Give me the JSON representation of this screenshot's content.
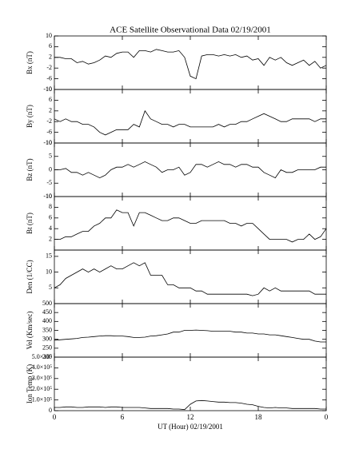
{
  "chart_data": [
    {
      "type": "line",
      "title": "ACE Satellite Observational Data   02/19/2001",
      "ylabel": "Bx (nT)",
      "x": [
        0,
        0.5,
        1,
        1.5,
        2,
        2.5,
        3,
        3.5,
        4,
        4.5,
        5,
        5.5,
        6,
        6.5,
        7,
        7.5,
        8,
        8.5,
        9,
        9.5,
        10,
        10.5,
        11,
        11.5,
        12,
        12.5,
        13,
        13.5,
        14,
        14.5,
        15,
        15.5,
        16,
        16.5,
        17,
        17.5,
        18,
        18.5,
        19,
        19.5,
        20,
        20.5,
        21,
        21.5,
        22,
        22.5,
        23,
        23.5,
        24
      ],
      "xlim": [
        0,
        24
      ],
      "xticks": [
        0,
        6,
        12,
        18,
        {
          "value": 24,
          "label": "0"
        }
      ],
      "ylim": [
        -10,
        10
      ],
      "yticks": [
        -10,
        -6,
        -2,
        2,
        6,
        10
      ],
      "series": [
        {
          "color": "#000000",
          "values": [
            2,
            2,
            1.5,
            1.5,
            0,
            0.5,
            -0.5,
            0,
            1,
            2.5,
            2,
            3.5,
            4,
            4,
            2,
            4.5,
            4.5,
            4,
            5,
            4.5,
            4,
            4,
            4.5,
            2,
            -5,
            -6,
            2.5,
            3,
            3,
            2.5,
            3,
            2.5,
            3,
            2,
            2.5,
            1,
            1.5,
            -1,
            2,
            1,
            2,
            0,
            -1,
            0,
            1,
            -1,
            0.5,
            -2,
            -1
          ]
        }
      ]
    },
    {
      "type": "line",
      "ylabel": "By (nT)",
      "x": [
        0,
        0.5,
        1,
        1.5,
        2,
        2.5,
        3,
        3.5,
        4,
        4.5,
        5,
        5.5,
        6,
        6.5,
        7,
        7.5,
        8,
        8.5,
        9,
        9.5,
        10,
        10.5,
        11,
        11.5,
        12,
        12.5,
        13,
        13.5,
        14,
        14.5,
        15,
        15.5,
        16,
        16.5,
        17,
        17.5,
        18,
        18.5,
        19,
        19.5,
        20,
        20.5,
        21,
        21.5,
        22,
        22.5,
        23,
        23.5,
        24
      ],
      "xlim": [
        0,
        24
      ],
      "xticks": [
        0,
        6,
        12,
        18,
        {
          "value": 24,
          "label": "0"
        }
      ],
      "ylim": [
        -10,
        10
      ],
      "yticks": [
        -10,
        -6,
        -2,
        2,
        6,
        10
      ],
      "series": [
        {
          "color": "#000000",
          "values": [
            -1,
            -2,
            -1,
            -2,
            -2,
            -3,
            -3,
            -4,
            -6,
            -7,
            -6,
            -5,
            -5,
            -5,
            -3,
            -4,
            2,
            -1,
            -2,
            -3,
            -3,
            -4,
            -3,
            -3,
            -4,
            -4,
            -4,
            -4,
            -4,
            -3,
            -4,
            -3,
            -3,
            -2,
            -2,
            -1,
            0,
            1,
            0,
            -1,
            -2,
            -2,
            -1,
            -1,
            -1,
            -1,
            -2,
            -1,
            -1
          ]
        }
      ]
    },
    {
      "type": "line",
      "ylabel": "Bz (nT)",
      "x": [
        0,
        0.5,
        1,
        1.5,
        2,
        2.5,
        3,
        3.5,
        4,
        4.5,
        5,
        5.5,
        6,
        6.5,
        7,
        7.5,
        8,
        8.5,
        9,
        9.5,
        10,
        10.5,
        11,
        11.5,
        12,
        12.5,
        13,
        13.5,
        14,
        14.5,
        15,
        15.5,
        16,
        16.5,
        17,
        17.5,
        18,
        18.5,
        19,
        19.5,
        20,
        20.5,
        21,
        21.5,
        22,
        22.5,
        23,
        23.5,
        24
      ],
      "xlim": [
        0,
        24
      ],
      "xticks": [
        0,
        6,
        12,
        18,
        {
          "value": 24,
          "label": "0"
        }
      ],
      "ylim": [
        -10,
        10
      ],
      "yticks": [
        -10,
        -5,
        0,
        5,
        10
      ],
      "series": [
        {
          "color": "#000000",
          "values": [
            0,
            0,
            0.5,
            -1,
            -1,
            -2,
            -1,
            -2,
            -3,
            -2,
            0,
            1,
            1,
            2,
            1,
            2,
            3,
            2,
            1,
            -1,
            0,
            0,
            1,
            -2,
            -1,
            2,
            2,
            1,
            2,
            3,
            2,
            2,
            1,
            2,
            2,
            1,
            1,
            -1,
            -2,
            -3,
            0,
            -1,
            -1,
            0,
            0,
            0,
            0,
            1,
            1
          ]
        }
      ]
    },
    {
      "type": "line",
      "ylabel": "Bt (nT)",
      "x": [
        0,
        0.5,
        1,
        1.5,
        2,
        2.5,
        3,
        3.5,
        4,
        4.5,
        5,
        5.5,
        6,
        6.5,
        7,
        7.5,
        8,
        8.5,
        9,
        9.5,
        10,
        10.5,
        11,
        11.5,
        12,
        12.5,
        13,
        13.5,
        14,
        14.5,
        15,
        15.5,
        16,
        16.5,
        17,
        17.5,
        18,
        18.5,
        19,
        19.5,
        20,
        20.5,
        21,
        21.5,
        22,
        22.5,
        23,
        23.5,
        24
      ],
      "xlim": [
        0,
        24
      ],
      "xticks": [
        0,
        6,
        12,
        18,
        {
          "value": 24,
          "label": "0"
        }
      ],
      "ylim": [
        0,
        10
      ],
      "yticks": [
        2,
        4,
        6,
        8,
        10
      ],
      "series": [
        {
          "color": "#000000",
          "values": [
            2,
            2,
            2.5,
            2.5,
            3,
            3.5,
            3.5,
            4.5,
            5,
            6,
            6,
            7.5,
            7,
            7,
            4.5,
            7,
            7,
            6.5,
            6,
            5.5,
            5.5,
            6,
            6,
            5.5,
            5,
            5,
            5.5,
            5.5,
            5.5,
            5.5,
            5.5,
            5,
            5,
            4.5,
            5,
            5,
            4,
            3,
            2,
            2,
            2,
            2,
            1.5,
            2,
            2,
            3,
            2,
            2.5,
            4
          ]
        }
      ]
    },
    {
      "type": "line",
      "ylabel": "Den (1/CC)",
      "x": [
        0,
        0.5,
        1,
        1.5,
        2,
        2.5,
        3,
        3.5,
        4,
        4.5,
        5,
        5.5,
        6,
        6.5,
        7,
        7.5,
        8,
        8.5,
        9,
        9.5,
        10,
        10.5,
        11,
        11.5,
        12,
        12.5,
        13,
        13.5,
        14,
        14.5,
        15,
        15.5,
        16,
        16.5,
        17,
        17.5,
        18,
        18.5,
        19,
        19.5,
        20,
        20.5,
        21,
        21.5,
        22,
        22.5,
        23,
        23.5,
        24
      ],
      "xlim": [
        0,
        24
      ],
      "xticks": [
        0,
        6,
        12,
        18,
        {
          "value": 24,
          "label": "0"
        }
      ],
      "ylim": [
        0,
        17
      ],
      "yticks": [
        5,
        10,
        15
      ],
      "series": [
        {
          "color": "#000000",
          "values": [
            5,
            6,
            8,
            9,
            10,
            11,
            10,
            11,
            10,
            11,
            12,
            11,
            11,
            12,
            13,
            12,
            13,
            9,
            9,
            9,
            6,
            6,
            5,
            5,
            5,
            4,
            4,
            3,
            3,
            3,
            3,
            3,
            3,
            3,
            3,
            2.5,
            3,
            5,
            4,
            5,
            4,
            4,
            4,
            4,
            4,
            4,
            3,
            3,
            3
          ]
        }
      ]
    },
    {
      "type": "line",
      "ylabel": "Vel (Km/sec)",
      "x": [
        0,
        0.5,
        1,
        1.5,
        2,
        2.5,
        3,
        3.5,
        4,
        4.5,
        5,
        5.5,
        6,
        6.5,
        7,
        7.5,
        8,
        8.5,
        9,
        9.5,
        10,
        10.5,
        11,
        11.5,
        12,
        12.5,
        13,
        13.5,
        14,
        14.5,
        15,
        15.5,
        16,
        16.5,
        17,
        17.5,
        18,
        18.5,
        19,
        19.5,
        20,
        20.5,
        21,
        21.5,
        22,
        22.5,
        23,
        23.5,
        24
      ],
      "xlim": [
        0,
        24
      ],
      "xticks": [
        0,
        6,
        12,
        18,
        {
          "value": 24,
          "label": "0"
        }
      ],
      "ylim": [
        200,
        500
      ],
      "yticks": [
        200,
        250,
        300,
        350,
        400,
        450,
        500
      ],
      "series": [
        {
          "color": "#000000",
          "values": [
            295,
            297,
            300,
            302,
            305,
            310,
            312,
            315,
            318,
            320,
            320,
            318,
            318,
            315,
            310,
            310,
            312,
            318,
            320,
            325,
            330,
            340,
            340,
            350,
            350,
            352,
            350,
            348,
            345,
            345,
            345,
            345,
            340,
            340,
            335,
            335,
            330,
            330,
            325,
            325,
            320,
            315,
            310,
            305,
            300,
            300,
            290,
            285,
            285
          ]
        }
      ]
    },
    {
      "type": "line",
      "ylabel": "Ion Temp (K)",
      "xlabel": "UT (Hour)   02/19/2001",
      "x": [
        0,
        0.5,
        1,
        1.5,
        2,
        2.5,
        3,
        3.5,
        4,
        4.5,
        5,
        5.5,
        6,
        6.5,
        7,
        7.5,
        8,
        8.5,
        9,
        9.5,
        10,
        10.5,
        11,
        11.5,
        12,
        12.5,
        13,
        13.5,
        14,
        14.5,
        15,
        15.5,
        16,
        16.5,
        17,
        17.5,
        18,
        18.5,
        19,
        19.5,
        20,
        20.5,
        21,
        21.5,
        22,
        22.5,
        23,
        23.5,
        24
      ],
      "xlim": [
        0,
        24
      ],
      "xticks": [
        0,
        6,
        12,
        18,
        {
          "value": 24,
          "label": "0"
        }
      ],
      "ylim": [
        0,
        500000
      ],
      "yticks": [
        0,
        {
          "value": 100000,
          "label": "1.0×10⁵"
        },
        {
          "value": 200000,
          "label": "2.0×10⁵"
        },
        {
          "value": 300000,
          "label": "3.0×10⁵"
        },
        {
          "value": 400000,
          "label": "4.0×10⁵"
        },
        {
          "value": 500000,
          "label": "5.0×10⁵"
        }
      ],
      "series": [
        {
          "color": "#000000",
          "values": [
            30000,
            30000,
            35000,
            35000,
            30000,
            30000,
            35000,
            35000,
            35000,
            30000,
            35000,
            35000,
            30000,
            30000,
            30000,
            30000,
            25000,
            20000,
            20000,
            20000,
            20000,
            15000,
            15000,
            10000,
            60000,
            90000,
            95000,
            90000,
            85000,
            80000,
            80000,
            75000,
            75000,
            70000,
            60000,
            55000,
            40000,
            30000,
            25000,
            30000,
            25000,
            25000,
            20000,
            20000,
            20000,
            20000,
            20000,
            15000,
            15000
          ]
        }
      ]
    }
  ]
}
